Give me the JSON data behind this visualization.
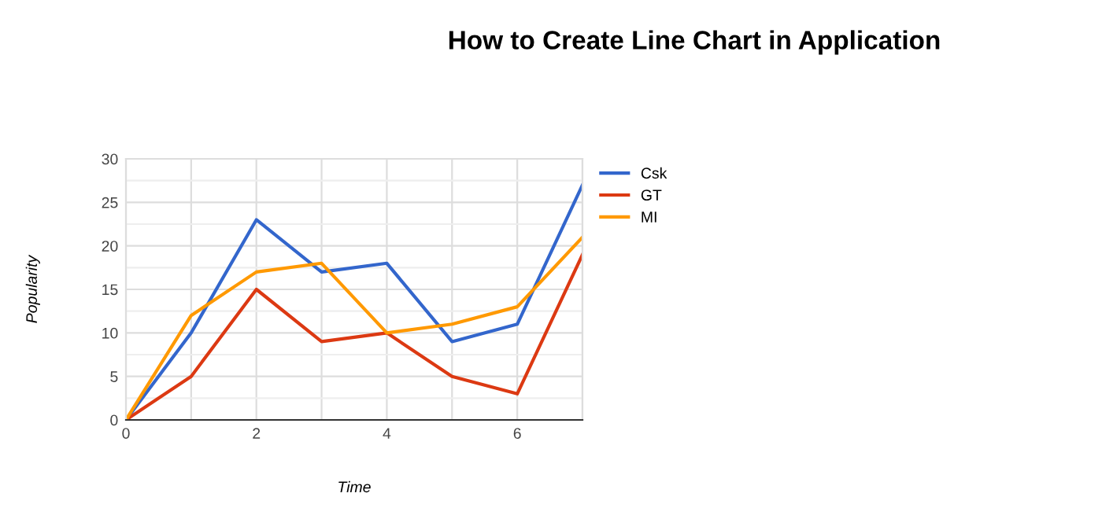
{
  "chart_data": {
    "type": "line",
    "title": "How to Create Line Chart in Application",
    "xlabel": "Time",
    "ylabel": "Popularity",
    "x": [
      0,
      1,
      2,
      3,
      4,
      5,
      6,
      7
    ],
    "series": [
      {
        "name": "Csk",
        "color": "#3366cc",
        "values": [
          0,
          10,
          23,
          17,
          18,
          9,
          11,
          27
        ]
      },
      {
        "name": "GT",
        "color": "#dc3912",
        "values": [
          0,
          5,
          15,
          9,
          10,
          5,
          3,
          19
        ]
      },
      {
        "name": "MI",
        "color": "#ff9900",
        "values": [
          0,
          12,
          17,
          18,
          10,
          11,
          13,
          21
        ]
      }
    ],
    "xlim": [
      0,
      7
    ],
    "ylim": [
      0,
      30
    ],
    "xticks": [
      0,
      2,
      4,
      6
    ],
    "yticks": [
      0,
      5,
      10,
      15,
      20,
      25,
      30
    ],
    "grid": true,
    "legend": "top right",
    "marker": "none",
    "line_style": "solid"
  }
}
